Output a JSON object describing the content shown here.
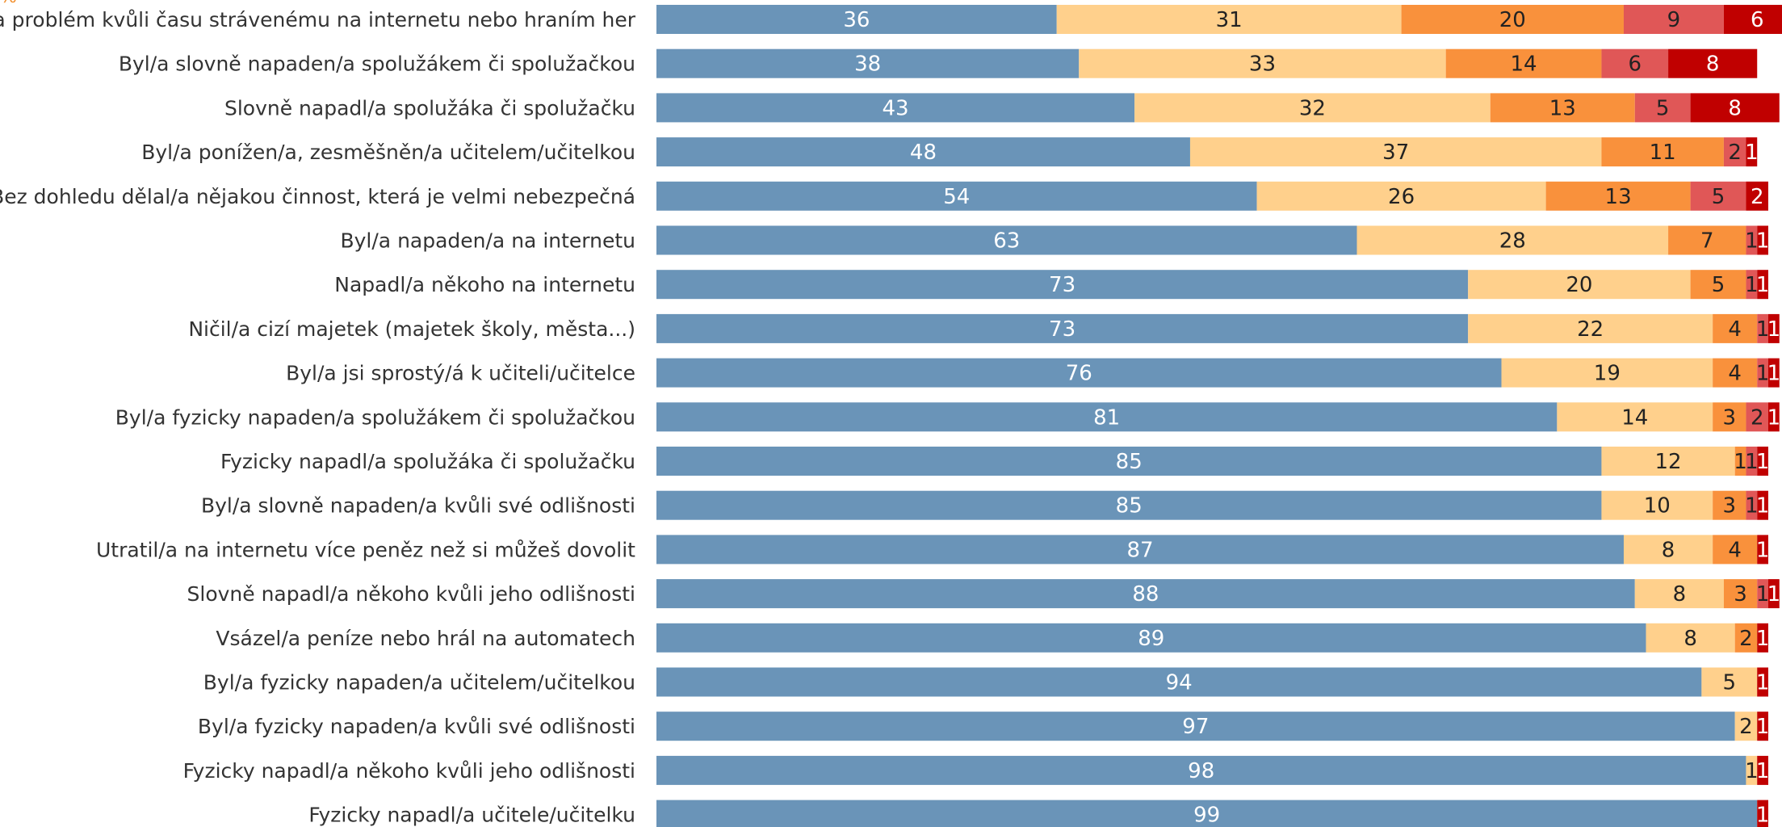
{
  "chart_data": {
    "type": "bar",
    "orientation": "horizontal",
    "stacked": true,
    "unit_mark": "%",
    "xlim": [
      0,
      100
    ],
    "grid": false,
    "categories": [
      "Měl/a problém kvůli času strávenému na internetu nebo hraním her",
      "Byl/a slovně napaden/a spolužákem či spolužačkou",
      "Slovně napadl/a spolužáka či spolužačku",
      "Byl/a ponížen/a, zesměšněn/a učitelem/učitelkou",
      "Bez dohledu dělal/a nějakou činnost, která je velmi nebezpečná",
      "Byl/a napaden/a na internetu",
      "Napadl/a někoho na internetu",
      "Ničil/a cizí  majetek (majetek školy, města...)",
      "Byl/a jsi sprostý/á k učiteli/učitelce",
      "Byl/a fyzicky napaden/a spolužákem či spolužačkou",
      "Fyzicky napadl/a spolužáka či spolužačku",
      "Byl/a slovně napaden/a kvůli své odlišnosti",
      "Utratil/a na internetu  více peněz než si můžeš dovolit",
      "Slovně napadl/a někoho kvůli jeho odlišnosti",
      "Vsázel/a peníze nebo hrál na automatech",
      "Byl/a fyzicky napaden/a učitelem/učitelkou",
      "Byl/a fyzicky napaden/a kvůli své odlišnosti",
      "Fyzicky napadl/a někoho kvůli jeho odlišnosti",
      "Fyzicky napadl/a učitele/učitelku"
    ],
    "series": [
      {
        "color": "#6a94b8",
        "label_color": "#ffffff",
        "values": [
          36,
          38,
          43,
          48,
          54,
          63,
          73,
          73,
          76,
          81,
          85,
          85,
          87,
          88,
          89,
          94,
          97,
          98,
          99
        ]
      },
      {
        "color": "#ffd08c",
        "label_color": "#222222",
        "values": [
          31,
          33,
          32,
          37,
          26,
          28,
          20,
          22,
          19,
          14,
          12,
          10,
          8,
          8,
          8,
          5,
          2,
          1,
          0
        ]
      },
      {
        "color": "#f9913c",
        "label_color": "#222222",
        "values": [
          20,
          14,
          13,
          11,
          13,
          7,
          5,
          4,
          4,
          3,
          1,
          3,
          4,
          3,
          2,
          0,
          0,
          0,
          0
        ]
      },
      {
        "color": "#e05757",
        "label_color": "#222222",
        "values": [
          9,
          6,
          5,
          2,
          5,
          1,
          1,
          1,
          1,
          2,
          1,
          1,
          0,
          1,
          0,
          0,
          0,
          0,
          0
        ]
      },
      {
        "color": "#c00000",
        "label_color": "#ffffff",
        "values": [
          6,
          8,
          8,
          1,
          2,
          1,
          1,
          1,
          1,
          1,
          1,
          1,
          1,
          1,
          1,
          1,
          1,
          1,
          1
        ]
      }
    ]
  }
}
